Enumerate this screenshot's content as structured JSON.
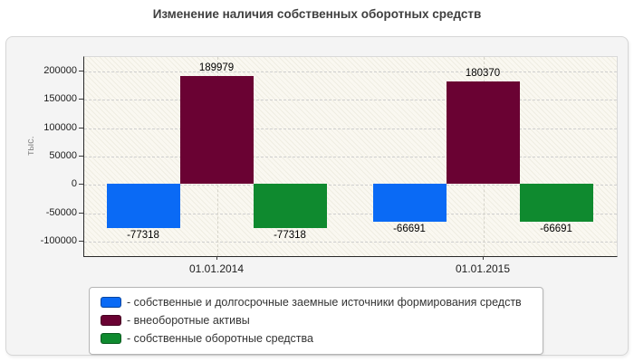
{
  "title": "Изменение наличия собственных оборотных средств",
  "chart_data": {
    "type": "bar",
    "categories": [
      "01.01.2014",
      "01.01.2015"
    ],
    "series": [
      {
        "name": "собственные и долгосрочные заемные источники формирования средств",
        "color": "#0a6af5",
        "values": [
          -77318,
          -66691
        ]
      },
      {
        "name": "внеоборотные активы",
        "color": "#6a0233",
        "values": [
          189979,
          180370
        ]
      },
      {
        "name": "собственные оборотные средства",
        "color": "#0f8a2f",
        "values": [
          -77318,
          -66691
        ]
      }
    ],
    "ylabel": "тыс.",
    "yticks": [
      200000,
      150000,
      100000,
      50000,
      0,
      -50000,
      -100000
    ],
    "ylim": [
      -125000,
      225000
    ],
    "grid": "dashed",
    "bar_labels": true,
    "legend_position": "bottom",
    "legend_prefix": "- "
  }
}
